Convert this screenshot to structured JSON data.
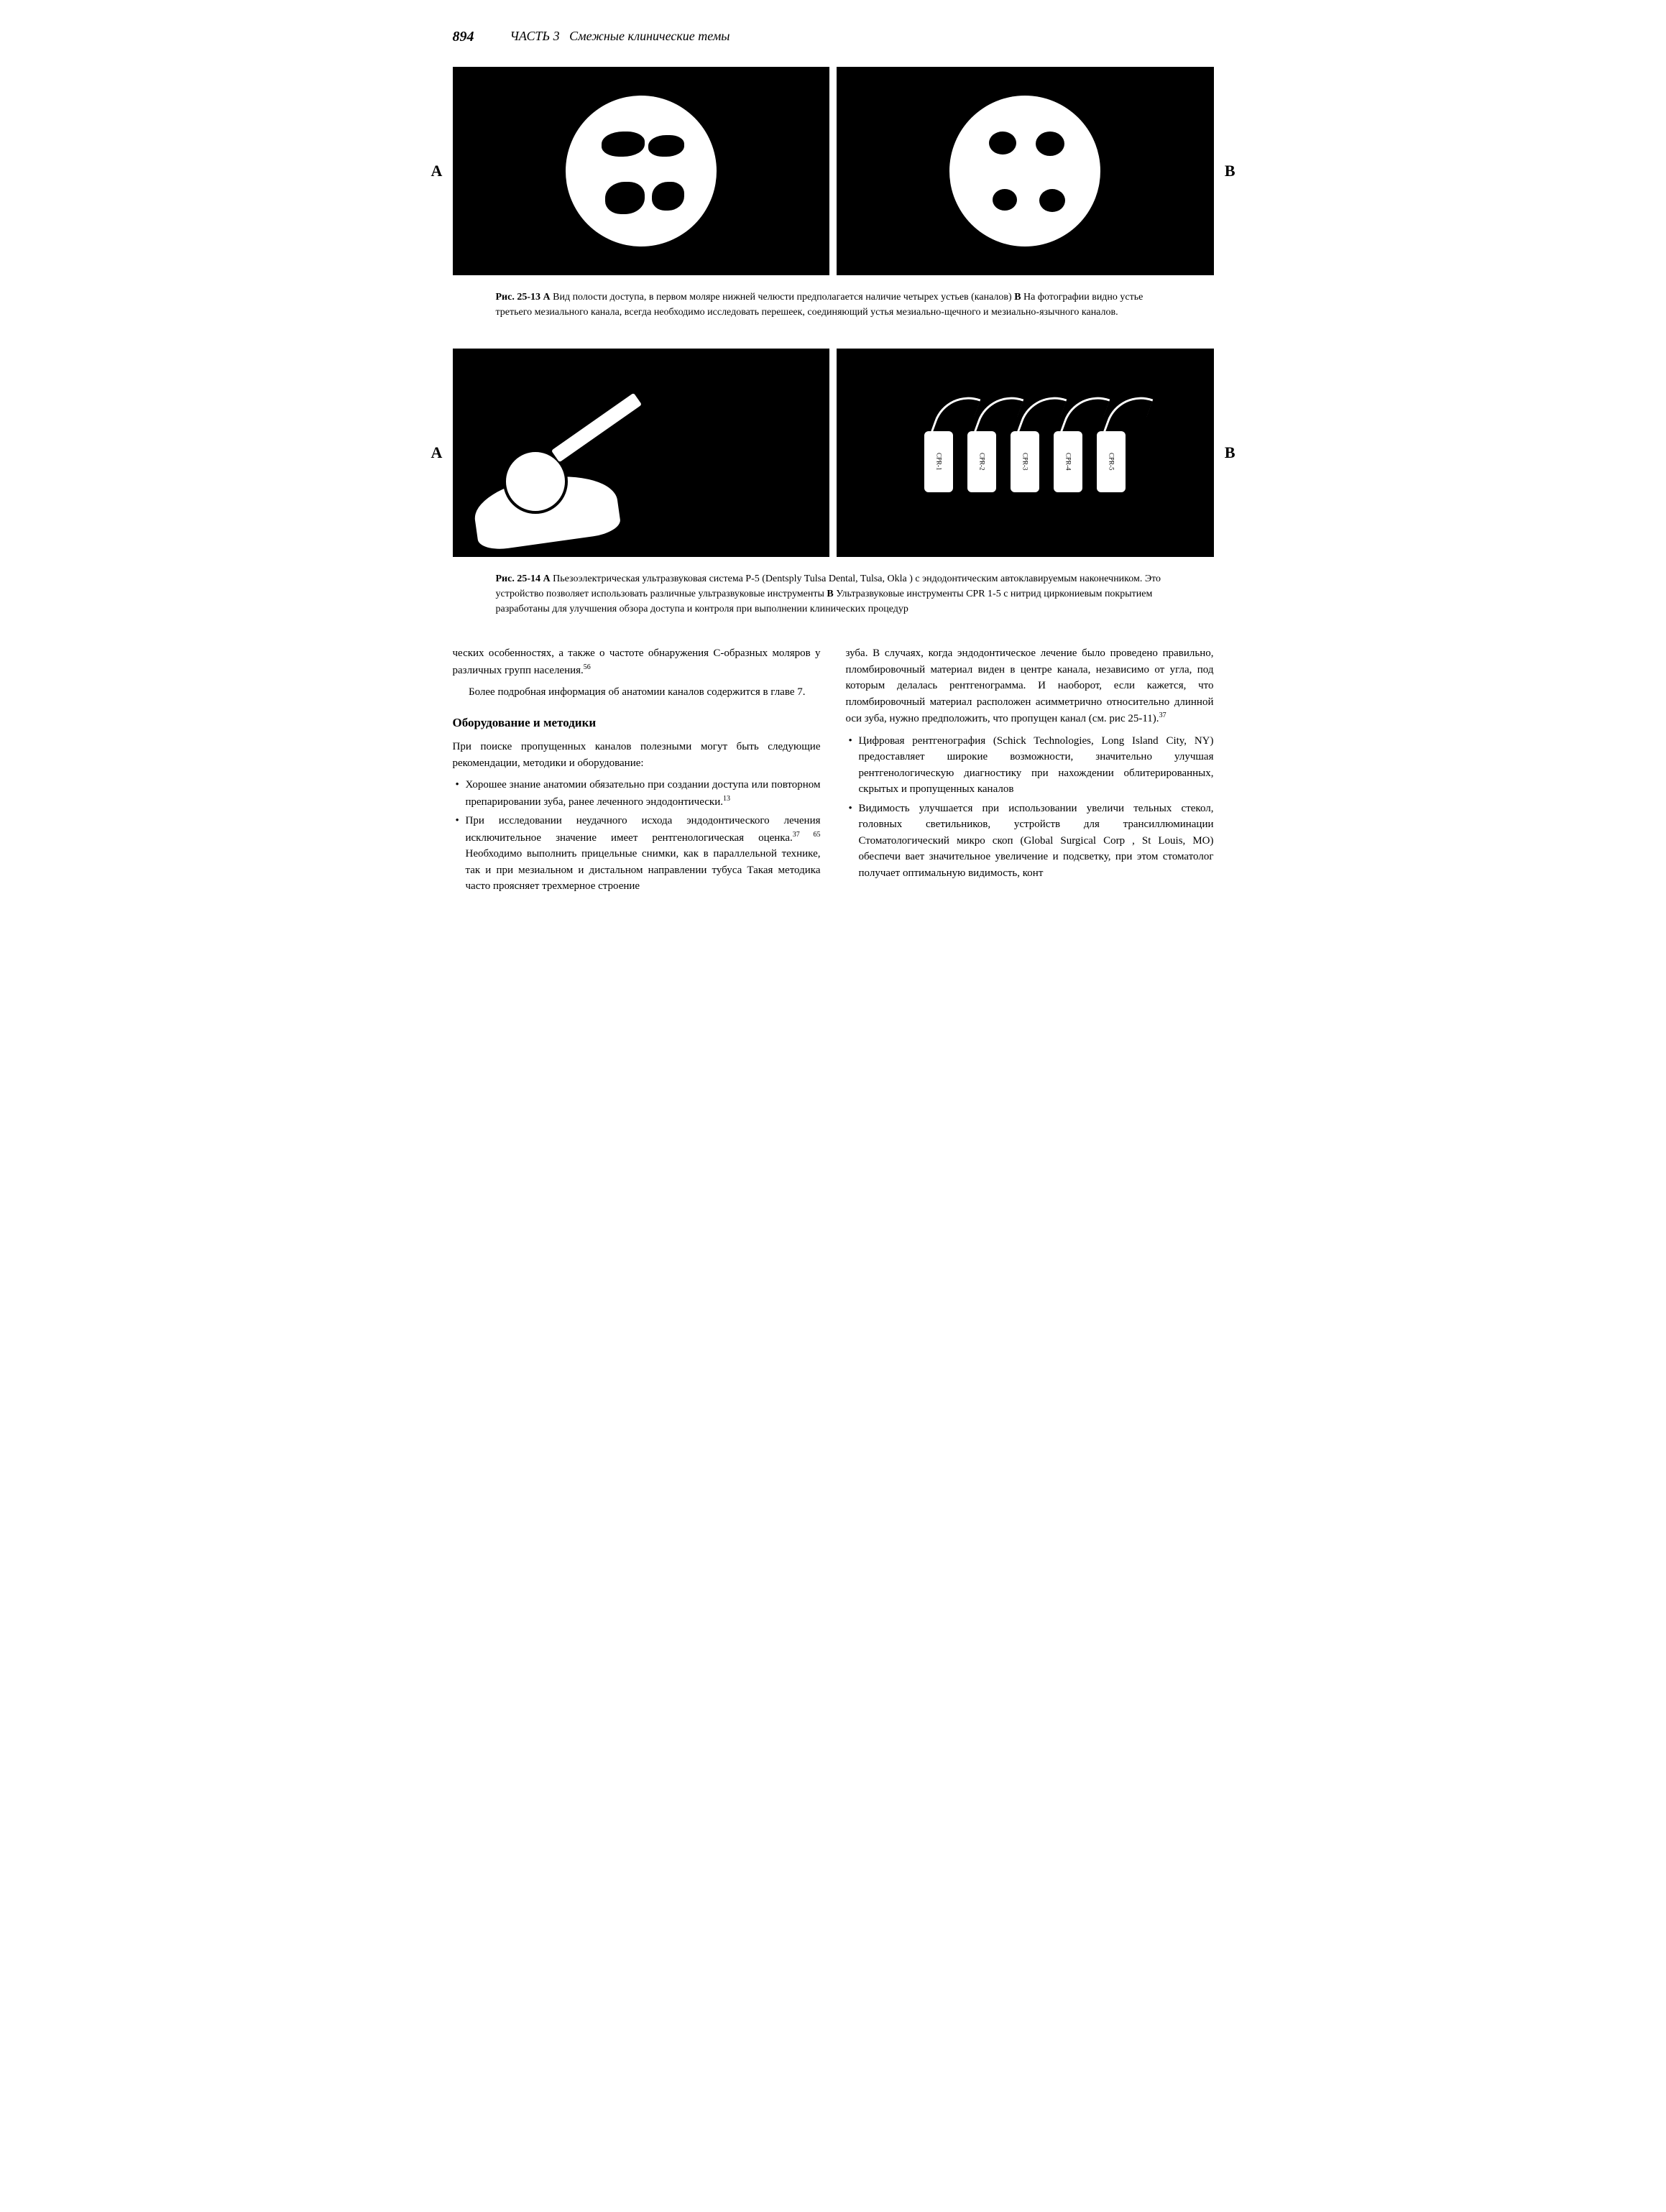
{
  "header": {
    "page_number": "894",
    "part_label": "ЧАСТЬ 3",
    "part_title": "Смежные клинические темы"
  },
  "figure1": {
    "label_left": "A",
    "label_right": "B",
    "caption_ref": "Рис. 25-13 А",
    "caption_text": " Вид полости доступа, в первом моляре нижней челюсти предполагается наличие четырех устьев (каналов) ",
    "caption_b": "В",
    "caption_b_text": " На фотографии видно устье третьего мезиального канала, всегда необходимо исследовать перешеек, со­единяющий устья мезиально-щечного и мезиально-язычного каналов."
  },
  "figure2": {
    "label_left": "A",
    "label_right": "B",
    "tip_labels": [
      "CPR-1",
      "CPR-2",
      "CPR-3",
      "CPR-4",
      "CPR-5"
    ],
    "caption_ref": "Рис. 25-14 А",
    "caption_text": " Пьезоэлектрическая ультразвуковая система P-5 (Dentsply Tulsa Dental, Tulsa, Okla ) с эндодонтическим автоклавируемым наконечником. Это устройство позволяет использовать различные ультразвуковые инструменты ",
    "caption_b": "В",
    "caption_b_text": " Ультразвуковые инструменты CPR 1-5 с нитрид циркониевым покрытием разработаны для улучшения обзора доступа и контроля при выполнении клинических процедур"
  },
  "body": {
    "left": {
      "p1": "ческих особенностях, а также о частоте обнаружения С-образных моляров у различных групп населения.",
      "p1_ref": "56",
      "p2": "Более подробная информация об анатомии каналов содержится в главе 7.",
      "heading": "Оборудование и методики",
      "intro": "При поиске пропущенных каналов полезными могут быть следующие рекомендации, методики и оборудование:",
      "bullets": [
        {
          "text": "Хорошее знание анатомии обязательно при создании доступа или повторном препарировании зуба, ранее леченного эндодонтически.",
          "ref": "13"
        },
        {
          "text": "При исследовании неудачного исхода эндодонтичес­кого лечения исключительное значение имеет рент­генологическая оценка.",
          "ref": "37 65",
          "cont": " Необходимо выполнить прицельные снимки, как в параллельной технике, так и при мезиальном и дистальном направлении тубуса Такая методика часто проясняет трехмерное строение"
        }
      ]
    },
    "right": {
      "p1": "зуба. В случаях, когда эндодонтическое лечение было проведено правильно, пломбировочный материал ви­ден в центре канала, независимо от угла, под которым делалась рентгенограмма. И наоборот, если кажется, что пломбировочный материал расположен асиммет­рично относительно длинной оси зуба, нужно предпо­ложить, что пропущен канал (см. рис  25-11).",
      "p1_ref": "37",
      "bullets": [
        {
          "text": "Цифровая рентгенография (Schick Technologies, Long Island City, NY) предоставляет широкие возможности, значительно улучшая рентгенологическую диагнос­тику при нахождении облитерированных, скрытых и пропущенных каналов"
        },
        {
          "text": "Видимость улучшается при использовании увеличи тельных стекол, головных светильников, устройств для трансиллюминации Стоматологический микро скоп (Global Surgical Corp , St  Louis, MO) обеспечи вает значительное увеличение и подсветку, при этом стоматолог получает оптимальную видимость, конт"
        }
      ]
    }
  }
}
